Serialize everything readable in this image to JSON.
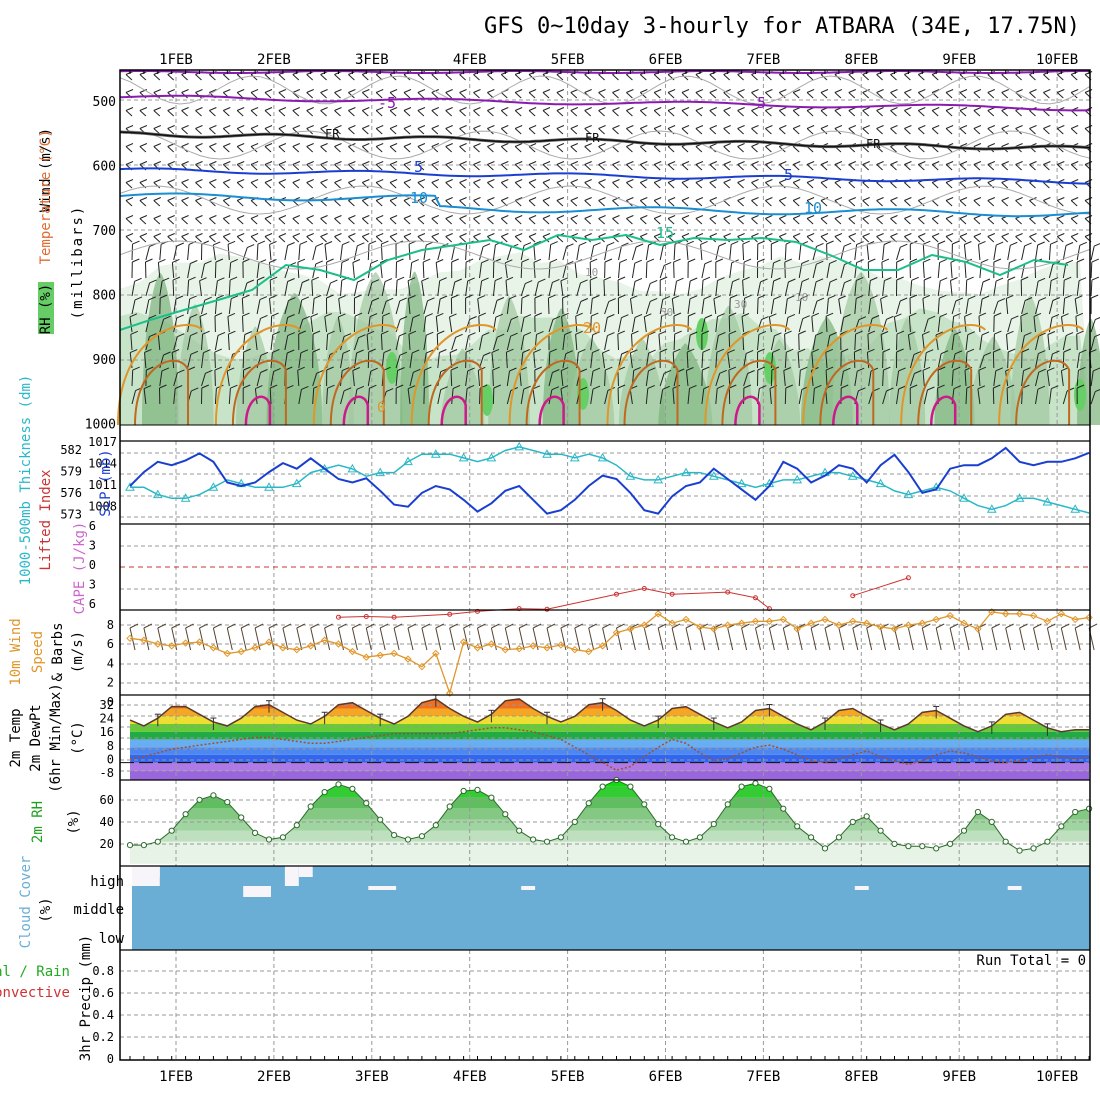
{
  "header": {
    "title": "GFS 0~10day 3-hourly for ATBARA (34E, 17.75N)"
  },
  "colors": {
    "frame": "#000000",
    "grid": "#999999",
    "rh": [
      "#e8f4e8",
      "#c8e4c8",
      "#a0c8a0",
      "#7ab27a"
    ],
    "rh_high": "#66d066",
    "temp_cold": "#8a1ab0",
    "fr_line": "#111111",
    "temp_5": "#1a3fd0",
    "temp_10": "#1a8ed0",
    "temp_15": "#1abf8a",
    "temp_20": "#e0962a",
    "temp_25": "#c06820",
    "temp_30": "#cc1a8a",
    "slp": "#1a3fd0",
    "thickness": "#2ab8c8",
    "lifted": "#cc3333",
    "cape": "#cc66cc",
    "wind10": "#e0962a",
    "barbs": "#554433",
    "rh2m": "#20a020",
    "cloud": "#6aaed6",
    "precip_total": "#22aa22",
    "precip_conv": "#cc3333",
    "dewpt_line": "#a05030"
  },
  "x_axis": {
    "day_labels": [
      "1FEB",
      "2FEB",
      "3FEB",
      "4FEB",
      "5FEB",
      "6FEB",
      "7FEB",
      "8FEB",
      "9FEB",
      "10FEB"
    ]
  },
  "panels": {
    "upper_air": {
      "ylabel_wind": "Wind (m/s)",
      "ylabel_temp": "Temperature (°C)",
      "ylabel_rh": "RH (%)",
      "ylabel_pressure": "(millibars)",
      "ticks": [
        "500",
        "600",
        "700",
        "800",
        "900",
        "1000"
      ],
      "contour_labels": {
        "t_minus5": "-5",
        "fr": "FR",
        "t5": "5",
        "t10": "10",
        "t15": "15",
        "t20": "20",
        "rh10": "10",
        "rh30": "30",
        "rh50": "50",
        "t0": "0"
      }
    },
    "slp": {
      "ylabel_thk": "1000-500mb Thickness (dm)",
      "ylabel_slp": "SLP (mb)",
      "thk_ticks": [
        "582",
        "579",
        "576",
        "573"
      ],
      "slp_ticks": [
        "1017",
        "1014",
        "1011",
        "1008"
      ]
    },
    "lifted": {
      "ylabel_li": "Lifted Index",
      "ylabel_cape": "CAPE (J/kg)",
      "ticks": [
        "6",
        "3",
        "0",
        "3",
        "6"
      ]
    },
    "wind10m": {
      "ylabel1": "10m Wind",
      "ylabel2": "Speed",
      "ylabel3": "& Barbs",
      "unit": "(m/s)",
      "ticks": [
        "8",
        "6",
        "4",
        "2",
        "0"
      ]
    },
    "temp2m": {
      "ylabel1": "2m Temp",
      "ylabel2": "2m DewPt",
      "ylabel3": "(6hr Min/Max)",
      "unit": "(°C)",
      "ticks": [
        "32",
        "24",
        "16",
        "8",
        "0",
        "-8"
      ]
    },
    "rh2m": {
      "ylabel": "2m RH",
      "unit": "(%)",
      "ticks": [
        "60",
        "40",
        "20"
      ]
    },
    "cloud": {
      "ylabel": "Cloud Cover",
      "unit": "(%)",
      "levels": [
        "high",
        "middle",
        "low"
      ]
    },
    "precip": {
      "ylabel1": "Total / Rain",
      "ylabel2": "Convective",
      "ylabel3": "3hr Precip (mm)",
      "ticks": [
        "0.8",
        "0.6",
        "0.4",
        "0.2",
        "0"
      ],
      "run_total": "Run Total = 0"
    }
  },
  "chart_data": {
    "type": "line",
    "x_step_hours": 3,
    "x_start": "31JAN 12Z",
    "days": [
      "1FEB",
      "2FEB",
      "3FEB",
      "4FEB",
      "5FEB",
      "6FEB",
      "7FEB",
      "8FEB",
      "9FEB",
      "10FEB"
    ],
    "slp_mb": [
      1010.5,
      1012.5,
      1014.0,
      1013.5,
      1014.2,
      1015.2,
      1014.0,
      1011.0,
      1010.5,
      1011.0,
      1012.5,
      1013.8,
      1013.0,
      1014.5,
      1013.0,
      1011.5,
      1011.0,
      1011.6,
      1009.8,
      1007.8,
      1007.5,
      1009.5,
      1010.5,
      1010.0,
      1008.5,
      1006.8,
      1008.0,
      1009.8,
      1010.5,
      1008.5,
      1006.5,
      1007.0,
      1008.5,
      1010.5,
      1012.0,
      1011.5,
      1009.5,
      1007.0,
      1006.5,
      1009.0,
      1010.5,
      1011.0,
      1013.0,
      1011.5,
      1010.0,
      1008.5,
      1010.5,
      1014.0,
      1013.0,
      1011.0,
      1012.0,
      1013.5,
      1013.0,
      1011.0,
      1013.5,
      1015.0,
      1012.5,
      1009.5,
      1010.0,
      1013.0,
      1013.5,
      1013.5,
      1014.5,
      1016.0,
      1014.0,
      1013.5,
      1014.0,
      1014.0,
      1014.5,
      1015.3
    ],
    "thickness_dm": [
      576.5,
      576.5,
      575.5,
      575.0,
      575.0,
      575.5,
      576.5,
      577.5,
      577.0,
      576.5,
      576.5,
      576.5,
      577.0,
      578.5,
      579.0,
      579.5,
      579.0,
      578.0,
      578.5,
      578.5,
      580.0,
      581.0,
      581.0,
      581.0,
      580.5,
      580.0,
      580.5,
      581.5,
      582.0,
      581.5,
      581.0,
      581.0,
      580.5,
      581.0,
      580.5,
      579.5,
      578.0,
      577.5,
      577.5,
      578.0,
      578.5,
      578.5,
      578.0,
      577.5,
      577.0,
      576.5,
      577.0,
      577.5,
      577.5,
      578.0,
      578.5,
      578.5,
      578.0,
      577.5,
      577.0,
      576.0,
      575.5,
      576.0,
      576.5,
      576.0,
      575.0,
      574.0,
      573.5,
      574.0,
      575.0,
      575.0,
      574.5,
      574.0,
      573.5,
      573.0
    ],
    "lifted_index_points": [
      [
        15,
        7.0
      ],
      [
        17,
        6.9
      ],
      [
        19,
        7.0
      ],
      [
        23,
        6.6
      ],
      [
        25,
        6.2
      ],
      [
        28,
        5.8
      ],
      [
        30,
        5.9
      ],
      [
        35,
        3.8
      ],
      [
        37,
        3.0
      ],
      [
        39,
        3.8
      ],
      [
        43,
        3.5
      ],
      [
        45,
        4.3
      ],
      [
        46,
        5.8
      ],
      [
        52,
        4.0
      ],
      [
        56,
        1.5
      ]
    ],
    "wind10m_speed_ms": [
      6.0,
      5.8,
      5.4,
      5.2,
      5.5,
      5.6,
      5.0,
      4.4,
      4.6,
      5.0,
      5.6,
      5.0,
      4.8,
      5.2,
      5.8,
      5.4,
      4.6,
      4.0,
      4.2,
      4.4,
      3.8,
      3.0,
      4.4,
      0.2,
      5.6,
      5.0,
      5.4,
      4.8,
      4.9,
      5.2,
      5.0,
      5.3,
      4.8,
      4.6,
      5.2,
      6.6,
      7.0,
      7.4,
      8.6,
      7.6,
      8.0,
      7.2,
      7.0,
      7.4,
      7.6,
      7.8,
      7.8,
      8.0,
      7.0,
      7.6,
      8.0,
      7.4,
      7.8,
      7.6,
      7.2,
      7.0,
      7.4,
      7.6,
      8.0,
      8.4,
      7.6,
      7.0,
      8.8,
      8.6,
      8.6,
      8.4,
      7.8,
      8.6,
      8.0,
      8.2
    ],
    "temp2m_c": [
      22,
      19,
      23,
      29,
      29,
      25,
      21,
      19,
      23,
      29,
      30,
      26,
      22,
      20,
      24,
      30,
      31,
      27,
      23,
      20,
      24,
      31,
      33,
      28,
      24,
      21,
      25,
      32,
      33,
      28,
      24,
      21,
      24,
      30,
      31,
      27,
      22,
      19,
      22,
      28,
      29,
      25,
      21,
      18,
      21,
      27,
      28,
      24,
      20,
      17,
      21,
      27,
      28,
      24,
      20,
      17,
      20,
      26,
      27,
      23,
      19,
      16,
      19,
      25,
      26,
      22,
      18,
      16,
      17,
      17
    ],
    "dewpt2m_c": [
      2,
      3,
      5,
      7,
      8,
      9,
      10,
      11,
      12,
      13,
      13,
      12,
      11,
      10,
      10,
      11,
      12,
      13,
      14,
      15,
      15,
      15,
      15,
      15,
      16,
      17,
      18,
      18,
      17,
      16,
      14,
      12,
      8,
      4,
      0,
      -4,
      -2,
      3,
      8,
      12,
      10,
      5,
      1,
      2,
      5,
      8,
      9,
      7,
      4,
      1,
      0,
      2,
      4,
      6,
      3,
      1,
      -1,
      1,
      4,
      6,
      5,
      3,
      1,
      0,
      1,
      3,
      4,
      3,
      2,
      3
    ],
    "rh2m_percent": [
      17,
      17,
      20,
      30,
      45,
      58,
      62,
      56,
      42,
      28,
      22,
      24,
      35,
      52,
      65,
      72,
      68,
      55,
      40,
      26,
      22,
      25,
      35,
      52,
      66,
      67,
      60,
      45,
      30,
      22,
      20,
      24,
      38,
      55,
      70,
      76,
      70,
      54,
      36,
      24,
      20,
      24,
      36,
      54,
      70,
      73,
      68,
      50,
      34,
      24,
      22,
      22,
      20,
      13,
      12,
      14,
      36,
      60,
      44,
      28,
      18,
      17,
      17,
      20,
      27,
      42,
      50,
      40,
      26,
      20
    ],
    "rh2m_late_percent": [
      14,
      24,
      38,
      43,
      30,
      18,
      16,
      16,
      14,
      18,
      30,
      47,
      38,
      20,
      12,
      14,
      20,
      34,
      47,
      50
    ],
    "cloud_high_blocks": [
      [
        0,
        0,
        2,
        1.0
      ],
      [
        1,
        0,
        2,
        0.55
      ],
      [
        8,
        4,
        10,
        0.55
      ],
      [
        11,
        0,
        12,
        1.0
      ],
      [
        12,
        0,
        13,
        0.55
      ],
      [
        17,
        4,
        19,
        0.2
      ],
      [
        28,
        4,
        29,
        0.2
      ],
      [
        52,
        4,
        53,
        0.2
      ],
      [
        63,
        4,
        64,
        0.2
      ]
    ],
    "precip_mm": [],
    "run_total_mm": 0
  }
}
